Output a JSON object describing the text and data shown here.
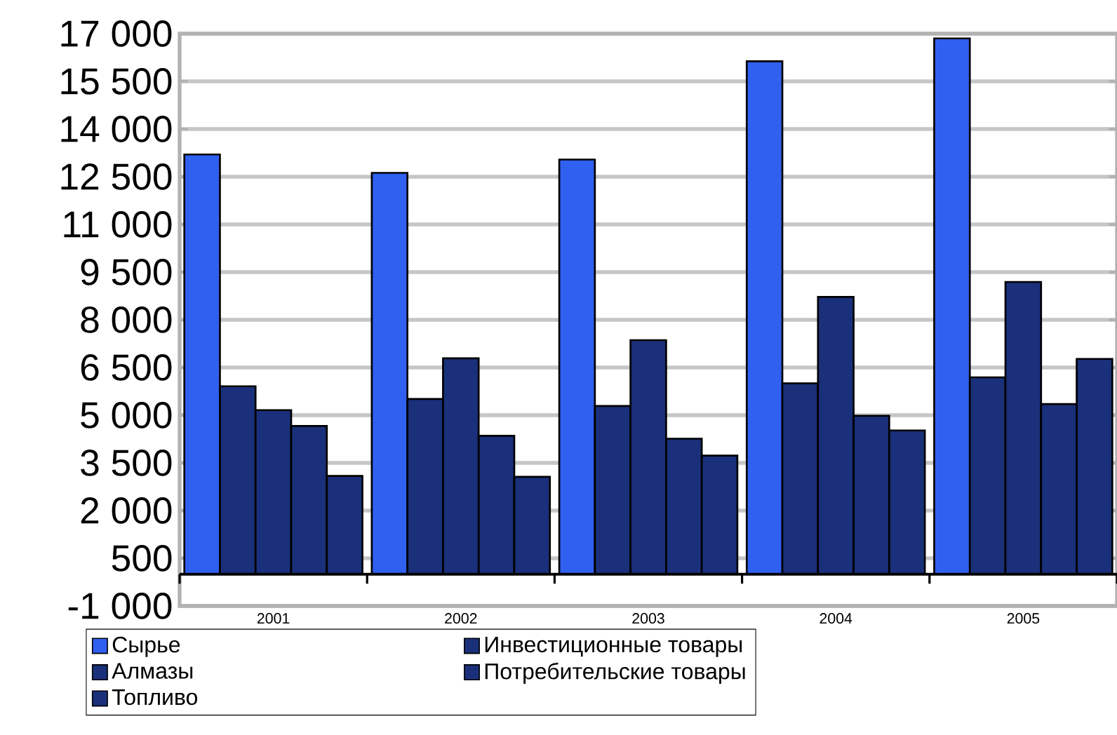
{
  "chart_data": {
    "type": "bar",
    "categories": [
      "2001",
      "2002",
      "2003",
      "2004",
      "2005"
    ],
    "series": [
      {
        "name": "Сырье",
        "color": "#3060f0",
        "values": [
          13200,
          12620,
          13040,
          16130,
          16850
        ]
      },
      {
        "name": "Алмазы",
        "color": "#1a307a",
        "values": [
          5910,
          5510,
          5290,
          6000,
          6190
        ]
      },
      {
        "name": "Топливо",
        "color": "#1a307a",
        "values": [
          5160,
          6790,
          7360,
          8720,
          9190
        ]
      },
      {
        "name": "Инвестиционные товары",
        "color": "#1a307a",
        "values": [
          4660,
          4350,
          4260,
          4980,
          5350
        ]
      },
      {
        "name": "Потребительские товары",
        "color": "#1a307a",
        "values": [
          3090,
          3060,
          3730,
          4520,
          6770
        ]
      }
    ],
    "ylim": [
      -1000,
      17000
    ],
    "yticks": [
      {
        "value": -1000,
        "label": "-1 000"
      },
      {
        "value": 500,
        "label": "500"
      },
      {
        "value": 2000,
        "label": "2 000"
      },
      {
        "value": 3500,
        "label": "3 500"
      },
      {
        "value": 5000,
        "label": "5 000"
      },
      {
        "value": 6500,
        "label": "6 500"
      },
      {
        "value": 8000,
        "label": "8 000"
      },
      {
        "value": 9500,
        "label": "9 500"
      },
      {
        "value": 11000,
        "label": "11 000"
      },
      {
        "value": 12500,
        "label": "12 500"
      },
      {
        "value": 14000,
        "label": "14 000"
      },
      {
        "value": 15500,
        "label": "15 500"
      },
      {
        "value": 17000,
        "label": "17 000"
      }
    ],
    "grid": "y",
    "legend": "bottom"
  }
}
